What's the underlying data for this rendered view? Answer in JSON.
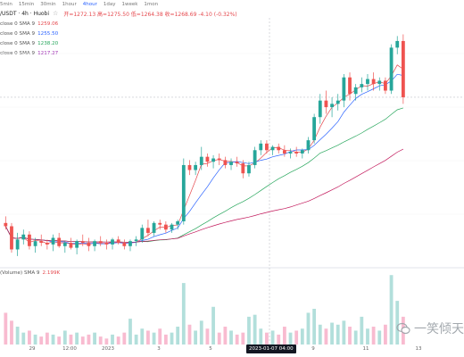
{
  "toolbar": {
    "timeframes": [
      {
        "label": "5min",
        "active": false
      },
      {
        "label": "15min",
        "active": false
      },
      {
        "label": "30min",
        "active": false
      },
      {
        "label": "1hour",
        "active": false
      },
      {
        "label": "4hour",
        "active": true
      },
      {
        "label": "1day",
        "active": false
      },
      {
        "label": "1week",
        "active": false
      },
      {
        "label": "1mon",
        "active": false
      }
    ]
  },
  "header": {
    "pair": "/USDT · 4h · Huobi",
    "star_icon": "star-icon",
    "ohlc": "开=1272.13  高=1275.50  低=1264.38  收=1268.69  -4.10 (-0.32%)"
  },
  "ma_legend": [
    {
      "label": "close 0 SMA 9",
      "value": "1259.06",
      "color": "#e5484d"
    },
    {
      "label": "close 0 SMA 9",
      "value": "1255.50",
      "color": "#2962ff"
    },
    {
      "label": "close 0 SMA 9",
      "value": "1238.20",
      "color": "#26a65b"
    },
    {
      "label": "close 0 SMA 9",
      "value": "1217.27",
      "color": "#9c27b0"
    }
  ],
  "volume_legend": {
    "label": "(Volume) SMA 9",
    "value": "2.199K"
  },
  "x_axis": {
    "ticks": [
      {
        "label": "29",
        "pos": 36
      },
      {
        "label": "12:00",
        "pos": 78
      },
      {
        "label": "2023",
        "pos": 121
      },
      {
        "label": "3",
        "pos": 178
      },
      {
        "label": "5",
        "pos": 236
      },
      {
        "label": "9",
        "pos": 351
      },
      {
        "label": "11",
        "pos": 410
      },
      {
        "label": "13",
        "pos": 469
      }
    ],
    "cursor_label": "2023-01-07  04:00"
  },
  "watermark": {
    "text": "一笑倾天",
    "icon": "wechat-icon"
  },
  "colors": {
    "up": "#26a69a",
    "down": "#ef5350",
    "vol_up": "#b2dfdb",
    "vol_down": "#f8bbd0"
  },
  "chart_data": {
    "type": "candlestick",
    "x_tick_labels": [
      "29",
      "12:00",
      "2023",
      "3",
      "5",
      "9",
      "11",
      "13"
    ],
    "ohlc": [
      [
        1196,
        1200,
        1192,
        1194
      ],
      [
        1194,
        1196,
        1178,
        1180
      ],
      [
        1180,
        1190,
        1176,
        1186
      ],
      [
        1186,
        1192,
        1183,
        1189
      ],
      [
        1189,
        1191,
        1180,
        1182
      ],
      [
        1182,
        1187,
        1178,
        1185
      ],
      [
        1185,
        1189,
        1182,
        1184
      ],
      [
        1184,
        1186,
        1180,
        1183
      ],
      [
        1183,
        1189,
        1179,
        1187
      ],
      [
        1187,
        1190,
        1181,
        1182
      ],
      [
        1182,
        1185,
        1178,
        1184
      ],
      [
        1184,
        1187,
        1180,
        1181
      ],
      [
        1181,
        1186,
        1177,
        1185
      ],
      [
        1185,
        1189,
        1182,
        1184
      ],
      [
        1184,
        1187,
        1179,
        1182
      ],
      [
        1182,
        1186,
        1179,
        1185
      ],
      [
        1185,
        1188,
        1182,
        1184
      ],
      [
        1184,
        1186,
        1180,
        1183
      ],
      [
        1183,
        1187,
        1180,
        1186
      ],
      [
        1186,
        1188,
        1183,
        1184
      ],
      [
        1184,
        1186,
        1180,
        1182
      ],
      [
        1182,
        1186,
        1179,
        1185
      ],
      [
        1185,
        1188,
        1182,
        1186
      ],
      [
        1186,
        1195,
        1184,
        1193
      ],
      [
        1193,
        1198,
        1188,
        1190
      ],
      [
        1190,
        1197,
        1188,
        1196
      ],
      [
        1196,
        1198,
        1192,
        1195
      ],
      [
        1195,
        1197,
        1190,
        1192
      ],
      [
        1192,
        1196,
        1190,
        1195
      ],
      [
        1195,
        1198,
        1192,
        1197
      ],
      [
        1197,
        1235,
        1195,
        1231
      ],
      [
        1231,
        1234,
        1225,
        1228
      ],
      [
        1228,
        1233,
        1225,
        1231
      ],
      [
        1231,
        1242,
        1228,
        1236
      ],
      [
        1236,
        1238,
        1230,
        1233
      ],
      [
        1233,
        1237,
        1229,
        1235
      ],
      [
        1235,
        1238,
        1231,
        1234
      ],
      [
        1234,
        1236,
        1229,
        1231
      ],
      [
        1231,
        1235,
        1228,
        1233
      ],
      [
        1233,
        1236,
        1230,
        1232
      ],
      [
        1232,
        1234,
        1223,
        1226
      ],
      [
        1226,
        1233,
        1224,
        1231
      ],
      [
        1231,
        1242,
        1229,
        1240
      ],
      [
        1240,
        1246,
        1237,
        1244
      ],
      [
        1244,
        1246,
        1238,
        1240
      ],
      [
        1240,
        1243,
        1237,
        1242
      ],
      [
        1242,
        1244,
        1238,
        1240
      ],
      [
        1240,
        1243,
        1236,
        1238
      ],
      [
        1238,
        1241,
        1235,
        1239
      ],
      [
        1239,
        1242,
        1236,
        1238
      ],
      [
        1238,
        1241,
        1235,
        1240
      ],
      [
        1240,
        1248,
        1238,
        1246
      ],
      [
        1246,
        1262,
        1244,
        1260
      ],
      [
        1260,
        1274,
        1256,
        1270
      ],
      [
        1270,
        1276,
        1262,
        1266
      ],
      [
        1266,
        1272,
        1260,
        1268
      ],
      [
        1268,
        1274,
        1264,
        1270
      ],
      [
        1270,
        1286,
        1266,
        1284
      ],
      [
        1284,
        1287,
        1270,
        1274
      ],
      [
        1274,
        1280,
        1270,
        1278
      ],
      [
        1278,
        1284,
        1275,
        1280
      ],
      [
        1280,
        1286,
        1276,
        1283
      ],
      [
        1283,
        1287,
        1276,
        1280
      ],
      [
        1280,
        1284,
        1276,
        1282
      ],
      [
        1282,
        1284,
        1274,
        1276
      ],
      [
        1276,
        1304,
        1274,
        1302
      ],
      [
        1302,
        1309,
        1298,
        1306
      ],
      [
        1306,
        1310,
        1268,
        1272
      ]
    ],
    "volume": [
      1.6,
      1.2,
      0.9,
      0.6,
      0.7,
      0.5,
      0.4,
      0.6,
      0.5,
      0.4,
      0.7,
      0.5,
      0.6,
      0.4,
      0.5,
      0.6,
      0.4,
      0.3,
      0.5,
      0.4,
      0.6,
      1.3,
      0.5,
      0.8,
      0.7,
      0.6,
      0.8,
      0.5,
      0.6,
      0.9,
      3.1,
      1.0,
      0.7,
      1.2,
      0.8,
      1.9,
      0.6,
      0.9,
      0.7,
      0.5,
      0.6,
      1.4,
      1.5,
      0.8,
      0.6,
      0.7,
      0.5,
      0.9,
      0.6,
      0.7,
      0.8,
      1.6,
      1.8,
      1.0,
      0.8,
      1.1,
      1.0,
      1.2,
      0.9,
      0.7,
      1.4,
      0.8,
      0.9,
      0.7,
      1.0,
      3.5,
      2.2,
      1.4
    ],
    "sma_values": {
      "red": 1259.06,
      "blue": 1255.5,
      "green": 1238.2,
      "purple": 1217.27
    },
    "ylim": [
      1170,
      1320
    ],
    "volume_max": 3.6
  }
}
